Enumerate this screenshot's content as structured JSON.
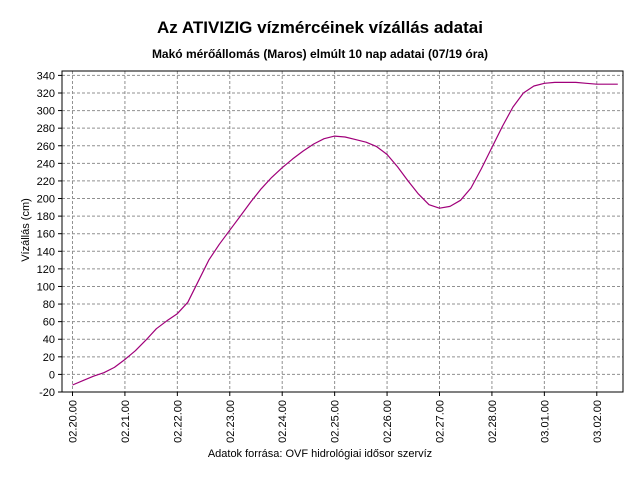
{
  "chart_data": {
    "type": "line",
    "title": "Az ATIVIZIG vízmércéinek vízállás adatai",
    "subtitle": "Makó mérőállomás (Maros) elmúlt 10 nap adatai (07/19 óra)",
    "ylabel": "Vízállás (cm)",
    "xlabel": "",
    "source": "Adatok forrása: OVF hidrológiai idősor szervíz",
    "x_tick_labels": [
      "02.20.00",
      "02.21.00",
      "02.22.00",
      "02.23.00",
      "02.24.00",
      "02.25.00",
      "02.26.00",
      "02.27.00",
      "02.28.00",
      "03.01.00",
      "03.02.00"
    ],
    "y_ticks": [
      -20,
      0,
      20,
      40,
      60,
      80,
      100,
      120,
      140,
      160,
      180,
      200,
      220,
      240,
      260,
      280,
      300,
      320,
      340
    ],
    "ylim": [
      -20,
      345
    ],
    "xlim_days": [
      -0.2,
      10.5
    ],
    "grid": true,
    "line_color": "#a0007a",
    "series": [
      {
        "x": [
          0,
          0.2,
          0.4,
          0.6,
          0.8,
          1.0,
          1.2,
          1.4,
          1.6,
          1.8,
          2.0,
          2.2,
          2.4,
          2.6,
          2.8,
          3.0,
          3.2,
          3.4,
          3.6,
          3.8,
          4.0,
          4.2,
          4.4,
          4.6,
          4.8,
          5.0,
          5.2,
          5.4,
          5.6,
          5.8,
          6.0,
          6.2,
          6.4,
          6.6,
          6.8,
          7.0,
          7.2,
          7.4,
          7.6,
          7.8,
          8.0,
          8.2,
          8.4,
          8.6,
          8.8,
          9.0,
          9.2,
          9.4,
          9.6,
          9.8,
          10.0,
          10.2,
          10.4
        ],
        "values": [
          -12,
          -7,
          -2,
          2,
          8,
          17,
          27,
          39,
          52,
          61,
          69,
          82,
          106,
          130,
          148,
          164,
          180,
          196,
          211,
          224,
          235,
          245,
          254,
          262,
          268,
          271,
          270,
          267,
          264,
          259,
          250,
          236,
          220,
          205,
          193,
          189,
          191,
          198,
          212,
          234,
          258,
          282,
          304,
          320,
          328,
          331,
          332,
          332,
          332,
          331,
          330,
          330,
          330
        ]
      }
    ]
  }
}
